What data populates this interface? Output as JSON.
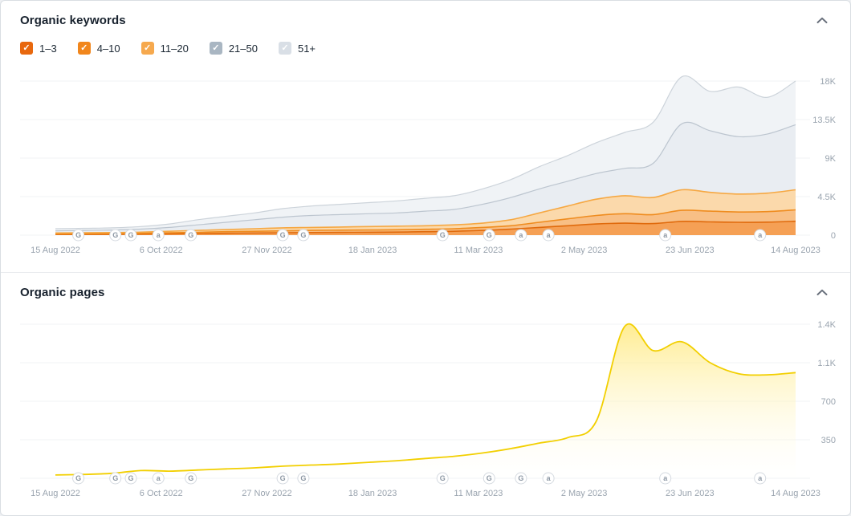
{
  "panels": [
    {
      "title": "Organic keywords",
      "collapse_icon": "chevron-up",
      "legend": [
        {
          "label": "1–3",
          "checked": true,
          "color": "#e8680e"
        },
        {
          "label": "4–10",
          "checked": true,
          "color": "#f1861c"
        },
        {
          "label": "11–20",
          "checked": true,
          "color": "#f6a94e"
        },
        {
          "label": "21–50",
          "checked": true,
          "color": "#a9b6c2"
        },
        {
          "label": "51+",
          "checked": true,
          "color": "#d9dfe6"
        }
      ]
    },
    {
      "title": "Organic pages",
      "collapse_icon": "chevron-up"
    }
  ],
  "chart_data": [
    {
      "type": "area",
      "stacked": true,
      "title": "Organic keywords",
      "legend_position": "top-left",
      "grid": "horizontal-faint",
      "x_tick_labels": [
        "15 Aug 2022",
        "6 Oct 2022",
        "27 Nov 2022",
        "18 Jan 2023",
        "11 Mar 2023",
        "2 May 2023",
        "23 Jun 2023",
        "14 Aug 2023"
      ],
      "y_ticks": [
        18000,
        13500,
        9000,
        4500,
        0
      ],
      "y_tick_labels": [
        "18K",
        "13.5K",
        "9K",
        "4.5K",
        "0"
      ],
      "ylim": [
        0,
        19200
      ],
      "series": [
        {
          "name": "1–3",
          "stroke": "#e06a0c",
          "fill": "#f5a055",
          "values": [
            80,
            90,
            100,
            120,
            150,
            180,
            220,
            250,
            280,
            300,
            320,
            340,
            360,
            400,
            450,
            550,
            700,
            900,
            1100,
            1300,
            1400,
            1350,
            1600,
            1550,
            1500,
            1520,
            1620
          ]
        },
        {
          "name": "4–10",
          "stroke": "#ef8c1f",
          "fill": "#f8bf85",
          "values": [
            70,
            80,
            100,
            100,
            130,
            150,
            180,
            200,
            220,
            250,
            260,
            260,
            270,
            280,
            300,
            350,
            400,
            600,
            800,
            1000,
            1100,
            1050,
            1300,
            1250,
            1200,
            1230,
            1330
          ]
        },
        {
          "name": "11–20",
          "stroke": "#f6a843",
          "fill": "#fbd9ab",
          "values": [
            100,
            110,
            100,
            130,
            170,
            220,
            250,
            300,
            350,
            350,
            370,
            400,
            420,
            420,
            450,
            500,
            700,
            1100,
            1500,
            1900,
            2100,
            2000,
            2400,
            2200,
            2100,
            2150,
            2350
          ]
        },
        {
          "name": "21–50",
          "stroke": "#bcc5cf",
          "fill": "#e9edf2",
          "values": [
            250,
            270,
            300,
            350,
            450,
            650,
            850,
            1050,
            1250,
            1400,
            1450,
            1500,
            1550,
            1700,
            1800,
            2200,
            2600,
            2800,
            2900,
            3000,
            3200,
            4000,
            7700,
            7200,
            6700,
            6900,
            7600
          ]
        },
        {
          "name": "51+",
          "stroke": "#ccd3da",
          "fill": "#f0f3f6",
          "values": [
            250,
            250,
            250,
            300,
            400,
            600,
            700,
            800,
            1000,
            1100,
            1200,
            1300,
            1400,
            1500,
            1600,
            1800,
            2100,
            2600,
            3000,
            3600,
            4200,
            4800,
            5500,
            4600,
            5800,
            4300,
            5100
          ]
        }
      ],
      "markers": [
        {
          "pos": 0.031,
          "type": "G"
        },
        {
          "pos": 0.081,
          "type": "G"
        },
        {
          "pos": 0.102,
          "type": "G"
        },
        {
          "pos": 0.139,
          "type": "a"
        },
        {
          "pos": 0.183,
          "type": "G"
        },
        {
          "pos": 0.307,
          "type": "G"
        },
        {
          "pos": 0.335,
          "type": "G"
        },
        {
          "pos": 0.523,
          "type": "G"
        },
        {
          "pos": 0.586,
          "type": "G"
        },
        {
          "pos": 0.629,
          "type": "a"
        },
        {
          "pos": 0.666,
          "type": "a"
        },
        {
          "pos": 0.824,
          "type": "a"
        },
        {
          "pos": 0.952,
          "type": "a"
        }
      ]
    },
    {
      "type": "area",
      "stacked": false,
      "title": "Organic pages",
      "grid": "horizontal-faint",
      "x_tick_labels": [
        "15 Aug 2022",
        "6 Oct 2022",
        "27 Nov 2022",
        "18 Jan 2023",
        "11 Mar 2023",
        "2 May 2023",
        "23 Jun 2023",
        "14 Aug 2023"
      ],
      "y_ticks": [
        1400,
        1050,
        700,
        350
      ],
      "y_tick_labels": [
        "1.4K",
        "1.1K",
        "700",
        "350"
      ],
      "ylim": [
        0,
        1500
      ],
      "series": [
        {
          "name": "Organic pages",
          "stroke": "#f2cf00",
          "fill_top": "#ffe97d",
          "fill_bottom": "#fffef5",
          "values": [
            30,
            35,
            45,
            70,
            65,
            75,
            85,
            95,
            110,
            120,
            130,
            145,
            160,
            180,
            200,
            230,
            270,
            320,
            370,
            520,
            1380,
            1160,
            1240,
            1050,
            950,
            940,
            960
          ]
        }
      ],
      "markers": [
        {
          "pos": 0.031,
          "type": "G"
        },
        {
          "pos": 0.081,
          "type": "G"
        },
        {
          "pos": 0.102,
          "type": "G"
        },
        {
          "pos": 0.139,
          "type": "a"
        },
        {
          "pos": 0.183,
          "type": "G"
        },
        {
          "pos": 0.307,
          "type": "G"
        },
        {
          "pos": 0.335,
          "type": "G"
        },
        {
          "pos": 0.523,
          "type": "G"
        },
        {
          "pos": 0.586,
          "type": "G"
        },
        {
          "pos": 0.629,
          "type": "G"
        },
        {
          "pos": 0.666,
          "type": "a"
        },
        {
          "pos": 0.824,
          "type": "a"
        },
        {
          "pos": 0.952,
          "type": "a"
        }
      ]
    }
  ]
}
